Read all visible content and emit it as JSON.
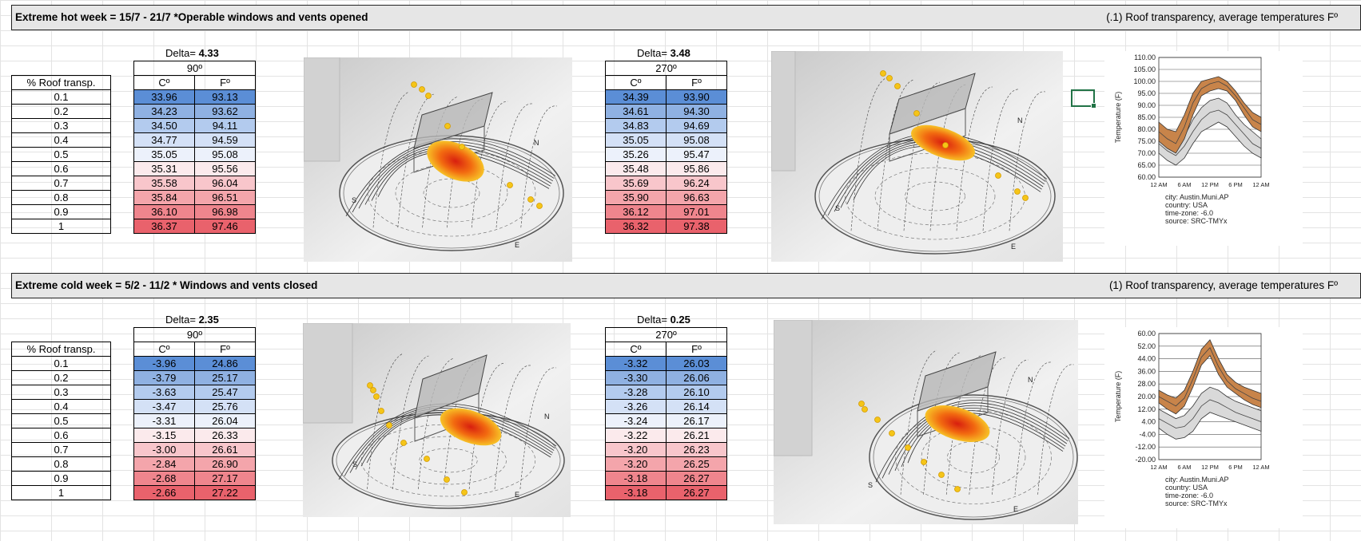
{
  "hot": {
    "title": "Extreme hot week = 15/7 - 21/7 *Operable windows and vents opened",
    "right_title": "(.1) Roof transparency, average temperatures Fº",
    "row_header": "% Roof transp.",
    "rows": [
      "0.1",
      "0.2",
      "0.3",
      "0.4",
      "0.5",
      "0.6",
      "0.7",
      "0.8",
      "0.9",
      "1"
    ],
    "t90": {
      "delta_label": "Delta=",
      "delta_value": "4.33",
      "orientation": "90º",
      "col_c": "Cº",
      "col_f": "Fº",
      "c": [
        "33.96",
        "34.23",
        "34.50",
        "34.77",
        "35.05",
        "35.31",
        "35.58",
        "35.84",
        "36.10",
        "36.37"
      ],
      "f": [
        "93.13",
        "93.62",
        "94.11",
        "94.59",
        "95.08",
        "95.56",
        "96.04",
        "96.51",
        "96.98",
        "97.46"
      ]
    },
    "t270": {
      "delta_label": "Delta=",
      "delta_value": "3.48",
      "orientation": "270º",
      "col_c": "Cº",
      "col_f": "Fº",
      "c": [
        "34.39",
        "34.61",
        "34.83",
        "35.05",
        "35.26",
        "35.48",
        "35.69",
        "35.90",
        "36.12",
        "36.32"
      ],
      "f": [
        "93.90",
        "94.30",
        "94.69",
        "95.08",
        "95.47",
        "95.86",
        "96.24",
        "96.63",
        "97.01",
        "97.38"
      ]
    }
  },
  "cold": {
    "title": "Extreme cold week = 5/2 - 11/2 * Windows and vents closed",
    "right_title": "(1) Roof transparency, average temperatures Fº",
    "row_header": "% Roof transp.",
    "rows": [
      "0.1",
      "0.2",
      "0.3",
      "0.4",
      "0.5",
      "0.6",
      "0.7",
      "0.8",
      "0.9",
      "1"
    ],
    "t90": {
      "delta_label": "Delta=",
      "delta_value": "2.35",
      "orientation": "90º",
      "col_c": "Cº",
      "col_f": "Fº",
      "c": [
        "-3.96",
        "-3.79",
        "-3.63",
        "-3.47",
        "-3.31",
        "-3.15",
        "-3.00",
        "-2.84",
        "-2.68",
        "-2.66"
      ],
      "f": [
        "24.86",
        "25.17",
        "25.47",
        "25.76",
        "26.04",
        "26.33",
        "26.61",
        "26.90",
        "27.17",
        "27.22"
      ]
    },
    "t270": {
      "delta_label": "Delta=",
      "delta_value": "0.25",
      "orientation": "270º",
      "col_c": "Cº",
      "col_f": "Fº",
      "c": [
        "-3.32",
        "-3.30",
        "-3.28",
        "-3.26",
        "-3.24",
        "-3.22",
        "-3.20",
        "-3.20",
        "-3.18",
        "-3.18"
      ],
      "f": [
        "26.03",
        "26.06",
        "26.10",
        "26.14",
        "26.17",
        "26.21",
        "26.23",
        "26.25",
        "26.27",
        "26.27"
      ]
    }
  },
  "row_colors": [
    "#5b8ed6",
    "#8fb1e2",
    "#b3cbee",
    "#d4e1f6",
    "#ecf1fb",
    "#fbeaec",
    "#f8c6cb",
    "#f4a5ab",
    "#ef858d",
    "#e9626c"
  ],
  "compass": {
    "s": "S",
    "e": "E",
    "n": "N"
  },
  "chart_data": [
    {
      "type": "area",
      "ylabel": "Temperature (F)",
      "ylim": [
        60,
        110
      ],
      "y_ticks": [
        "110.00",
        "105.00",
        "100.00",
        "95.00",
        "90.00",
        "85.00",
        "80.00",
        "75.00",
        "70.00",
        "65.00",
        "60.00"
      ],
      "x_ticks": [
        "12 AM",
        "6 AM",
        "12 PM",
        "6 PM",
        "12 AM"
      ],
      "x": [
        0,
        2,
        4,
        6,
        8,
        10,
        12,
        14,
        16,
        18,
        20,
        22,
        24
      ],
      "series": [
        {
          "color": "#c8844a",
          "low": [
            75,
            72,
            70,
            76,
            86,
            94,
            96,
            97,
            96,
            92,
            86,
            81,
            79
          ],
          "high": [
            83,
            80,
            79,
            86,
            95,
            100,
            101,
            102,
            100,
            96,
            91,
            87,
            85
          ],
          "mid": [
            79,
            76,
            74,
            81,
            91,
            97,
            99,
            100,
            98,
            94,
            89,
            84,
            82
          ]
        },
        {
          "color": "#d9d9d9",
          "low": [
            70,
            67,
            65,
            68,
            74,
            79,
            81,
            83,
            81,
            77,
            73,
            70,
            68
          ],
          "high": [
            77,
            75,
            73,
            77,
            84,
            89,
            92,
            93,
            91,
            86,
            82,
            79,
            76
          ],
          "mid": [
            74,
            71,
            69,
            73,
            79,
            84,
            87,
            88,
            86,
            82,
            78,
            74,
            72
          ]
        }
      ],
      "info": [
        "city: Austin.Muni.AP",
        "country: USA",
        "time-zone: -6.0",
        "source: SRC-TMYx"
      ]
    },
    {
      "type": "area",
      "ylabel": "Temperature (F)",
      "ylim": [
        -20,
        60
      ],
      "y_ticks": [
        "60.00",
        "52.00",
        "44.00",
        "36.00",
        "28.00",
        "20.00",
        "12.00",
        "4.00",
        "-4.00",
        "-12.00",
        "-20.00"
      ],
      "x_ticks": [
        "12 AM",
        "6 AM",
        "12 PM",
        "6 PM",
        "12 AM"
      ],
      "x": [
        0,
        2,
        4,
        6,
        8,
        10,
        12,
        14,
        16,
        18,
        20,
        22,
        24
      ],
      "series": [
        {
          "color": "#c8844a",
          "low": [
            16,
            12,
            9,
            14,
            26,
            40,
            46,
            34,
            26,
            22,
            18,
            15,
            13
          ],
          "high": [
            24,
            21,
            19,
            24,
            36,
            50,
            56,
            44,
            34,
            29,
            26,
            24,
            22
          ],
          "mid": [
            20,
            17,
            14,
            19,
            31,
            45,
            51,
            39,
            30,
            25,
            22,
            19,
            17
          ]
        },
        {
          "color": "#d9d9d9",
          "low": [
            0,
            -4,
            -7,
            -6,
            -2,
            6,
            10,
            8,
            6,
            4,
            2,
            0,
            -2
          ],
          "high": [
            12,
            9,
            6,
            8,
            14,
            22,
            26,
            24,
            20,
            17,
            15,
            13,
            11
          ],
          "mid": [
            6,
            3,
            0,
            1,
            6,
            14,
            18,
            16,
            13,
            10,
            8,
            6,
            4
          ]
        }
      ],
      "info": [
        "city: Austin.Muni.AP",
        "country: USA",
        "time-zone: -6.0",
        "source: SRC-TMYx"
      ]
    }
  ]
}
